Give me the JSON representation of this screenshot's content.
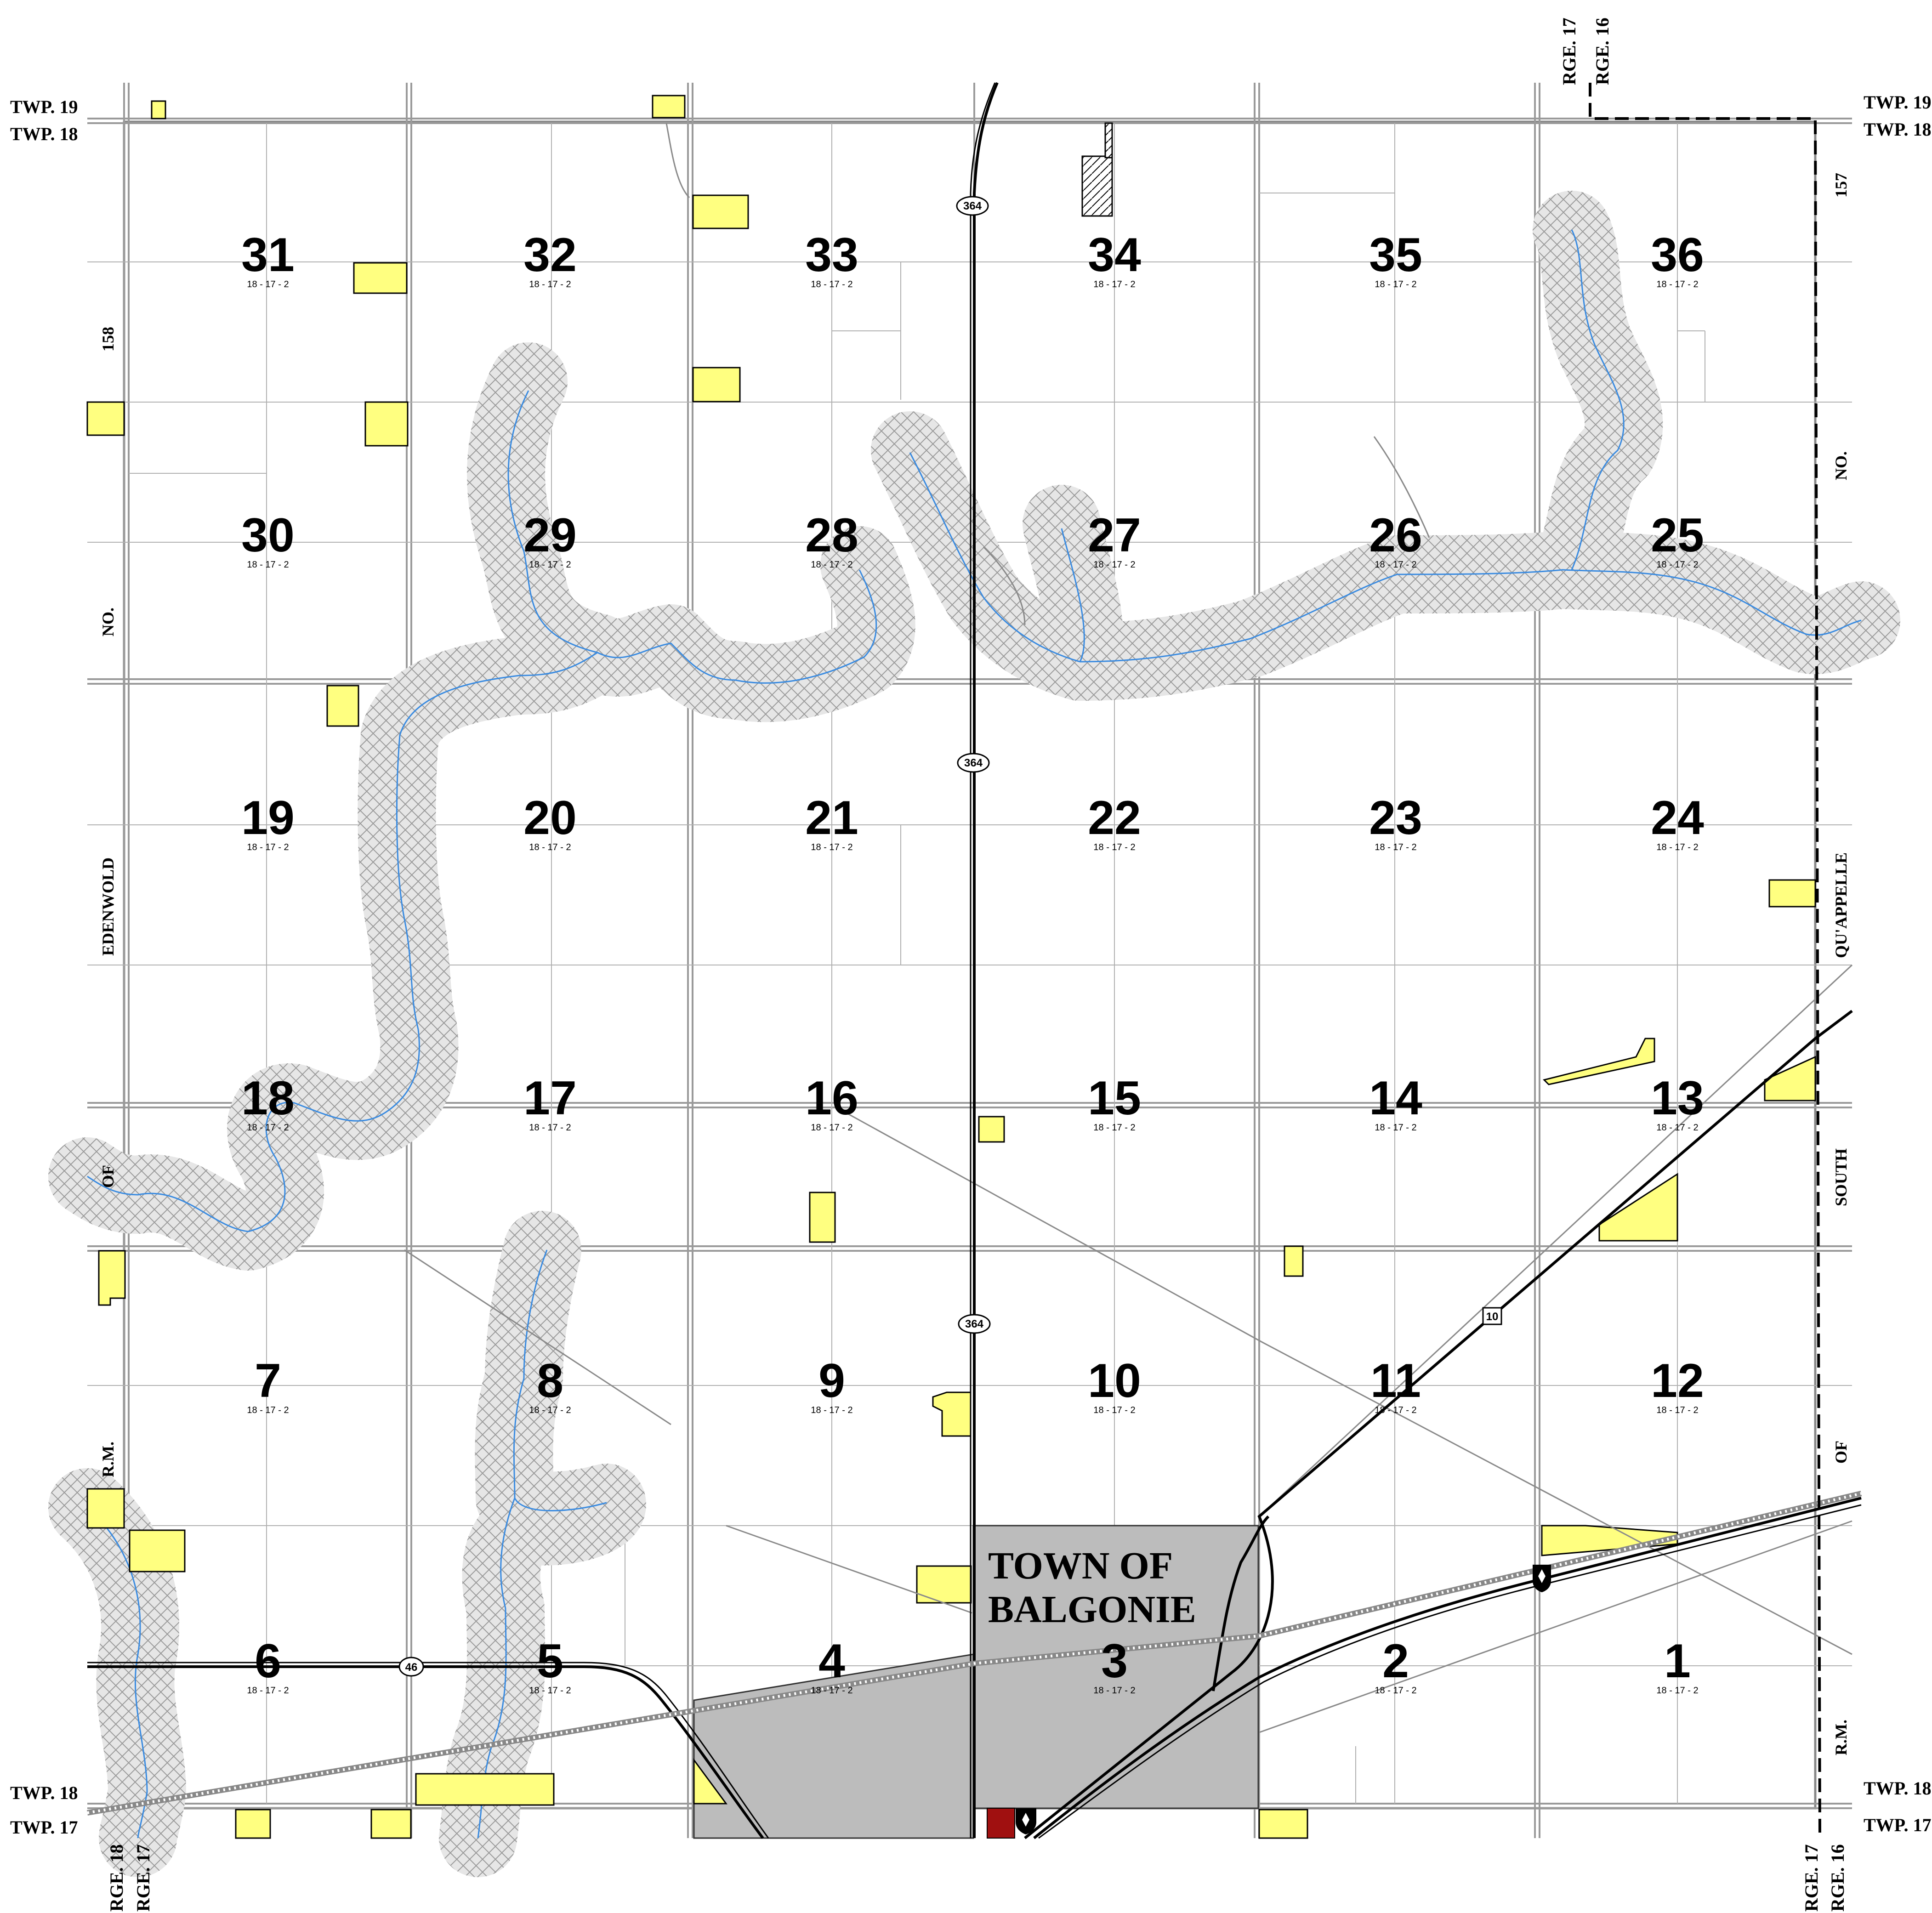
{
  "township_labels": {
    "top_left_upper": "TWP. 19",
    "top_left_lower": "TWP. 18",
    "top_right_upper": "TWP. 19",
    "top_right_lower": "TWP. 18",
    "bottom_left_upper": "TWP. 18",
    "bottom_left_lower": "TWP. 17",
    "bottom_right_upper": "TWP. 18",
    "bottom_right_lower": "TWP. 17"
  },
  "range_labels": {
    "top_a": "RGE. 17",
    "top_b": "RGE. 16",
    "bottom_left_a": "RGE. 18",
    "bottom_left_b": "RGE. 17",
    "bottom_right_a": "RGE. 17",
    "bottom_right_b": "RGE. 16"
  },
  "rm_labels": {
    "left": [
      "NO.",
      "EDENWOLD",
      "OF",
      "R.M."
    ],
    "left_number": "158",
    "right": [
      "NO.",
      "QU'APPELLE",
      "SOUTH",
      "OF",
      "R.M."
    ],
    "right_number": "157"
  },
  "town": {
    "line1": "TOWN OF",
    "line2": "BALGONIE"
  },
  "highways": {
    "h364": "364",
    "h46": "46",
    "h10": "10"
  },
  "section_suffix": "18 - 17 - 2",
  "sections": [
    [
      "31",
      "32",
      "33",
      "34",
      "35",
      "36"
    ],
    [
      "30",
      "29",
      "28",
      "27",
      "26",
      "25"
    ],
    [
      "19",
      "20",
      "21",
      "22",
      "23",
      "24"
    ],
    [
      "18",
      "17",
      "16",
      "15",
      "14",
      "13"
    ],
    [
      "7",
      "8",
      "9",
      "10",
      "11",
      "12"
    ],
    [
      "6",
      "5",
      "4",
      "3",
      "2",
      "1"
    ]
  ],
  "colors": {
    "land_parcel": "#ffff80",
    "town_fill": "#bcbcbc",
    "creek": "#3a8be0",
    "buffer_fill": "#e4e4e4",
    "highlight_red": "#a01010"
  }
}
